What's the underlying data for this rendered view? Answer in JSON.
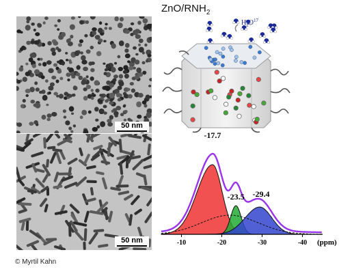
{
  "figure": {
    "title_main": "ZnO/RNH",
    "title_sub": "2",
    "credit": "© Myrtil Kahn"
  },
  "tem": {
    "top_scale": "50 nm",
    "bottom_scale": "50 nm"
  },
  "schematic": {
    "molecule_label": "H",
    "molecule_sub": "2",
    "molecule_o": "O",
    "molecule_sup": "17"
  },
  "chart_data": {
    "type": "line",
    "xlabel": "(ppm)",
    "ylabel": "",
    "x_ticks": [
      "-10",
      "-20",
      "-30",
      "-40"
    ],
    "xlim": [
      -5,
      -45
    ],
    "peaks": [
      {
        "position": -17.7,
        "label": "-17.7",
        "color": "#ee3333"
      },
      {
        "position": -23.5,
        "label": "-23.5",
        "color": "#22aa33"
      },
      {
        "position": -29.4,
        "label": "-29.4",
        "color": "#3344cc"
      }
    ],
    "colors": {
      "envelope": "#9933ee",
      "fit": "#111111"
    }
  }
}
